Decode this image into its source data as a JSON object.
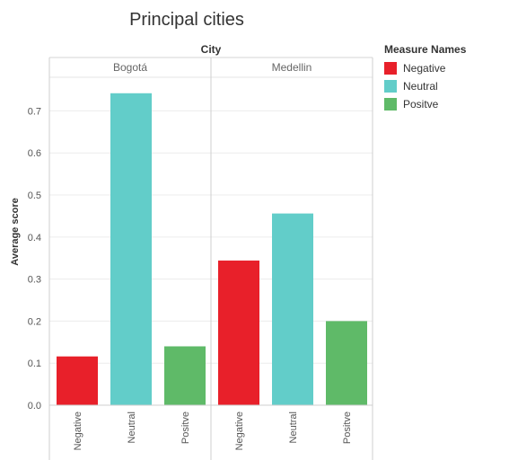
{
  "chart_data": {
    "type": "bar",
    "title": "Principal cities",
    "column_header": "City",
    "ylabel": "Average score",
    "ylim": [
      0,
      0.78
    ],
    "yticks": [
      0.0,
      0.1,
      0.2,
      0.3,
      0.4,
      0.5,
      0.6,
      0.7
    ],
    "grid": true,
    "categories": [
      "Negative",
      "Neutral",
      "Positve"
    ],
    "panels": [
      {
        "name": "Bogotá",
        "values": [
          0.116,
          0.742,
          0.14
        ]
      },
      {
        "name": "Medellin",
        "values": [
          0.344,
          0.456,
          0.2
        ]
      }
    ],
    "legend": {
      "title": "Measure Names",
      "position": "top-right",
      "items": [
        {
          "label": "Negative",
          "color": "#e8202a"
        },
        {
          "label": "Neutral",
          "color": "#62cdc9"
        },
        {
          "label": "Positve",
          "color": "#5fba68"
        }
      ]
    }
  }
}
